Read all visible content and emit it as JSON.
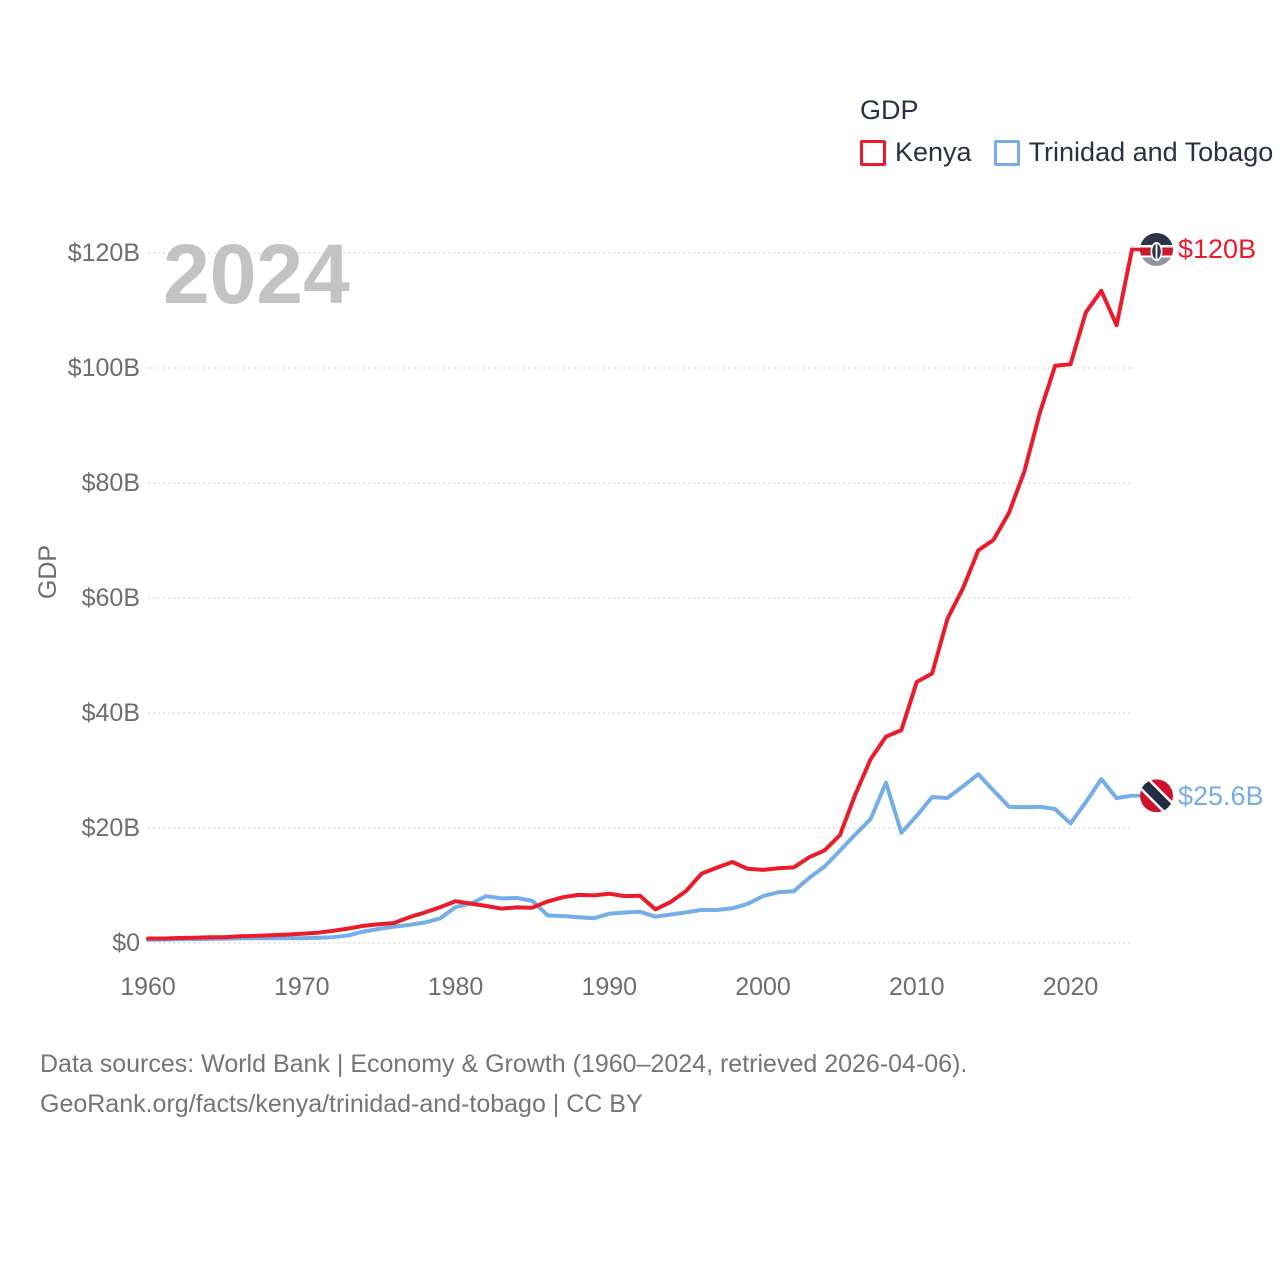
{
  "watermark": "2024",
  "legend": {
    "title": "GDP",
    "items": [
      {
        "label": "Kenya"
      },
      {
        "label": "Trinidad and Tobago"
      }
    ]
  },
  "y_axis": {
    "title": "GDP",
    "ticks": [
      {
        "label": "$120B",
        "value": 120
      },
      {
        "label": "$100B",
        "value": 100
      },
      {
        "label": "$80B",
        "value": 80
      },
      {
        "label": "$60B",
        "value": 60
      },
      {
        "label": "$40B",
        "value": 40
      },
      {
        "label": "$20B",
        "value": 20
      },
      {
        "label": "$0",
        "value": 0
      }
    ]
  },
  "x_axis": {
    "ticks": [
      {
        "label": "1960",
        "year": 1960
      },
      {
        "label": "1970",
        "year": 1970
      },
      {
        "label": "1980",
        "year": 1980
      },
      {
        "label": "1990",
        "year": 1990
      },
      {
        "label": "2000",
        "year": 2000
      },
      {
        "label": "2010",
        "year": 2010
      },
      {
        "label": "2020",
        "year": 2020
      }
    ]
  },
  "end_labels": {
    "kenya": "$120B",
    "trinidad": "$25.6B"
  },
  "footer": {
    "line1": "Data sources: World Bank | Economy & Growth (1960–2024, retrieved 2026-04-06).",
    "line2": "GeoRank.org/facts/kenya/trinidad-and-tobago | CC BY"
  },
  "colors": {
    "kenya": "#ea1c2c",
    "trinidad": "#74ade8",
    "grid": "#e4e4e4",
    "tick_text": "#6e6e6e",
    "dark_text": "#273142",
    "watermark": "#c3c3c3",
    "footer_text": "#757575",
    "kenya_flag_navy": "#2c3547",
    "kenya_flag_red": "#c81a2b",
    "kenya_flag_gray": "#8f95a0",
    "tt_flag_red": "#d0112b",
    "tt_flag_navy": "#232c42"
  },
  "chart_data": {
    "type": "line",
    "title": "GDP",
    "ylabel": "GDP",
    "x_start": 1960,
    "x_end": 2024,
    "x_tick_years": [
      1960,
      1970,
      1980,
      1990,
      2000,
      2010,
      2020
    ],
    "y_ticks_b": [
      0,
      20,
      40,
      60,
      80,
      100,
      120
    ],
    "ylim": [
      0,
      130
    ],
    "grid": true,
    "legend_position": "top-right",
    "units": "billions USD",
    "series": [
      {
        "name": "Trinidad and Tobago",
        "color": "#74ade8",
        "end_label": "$25.6B",
        "values": [
          0.55,
          0.61,
          0.64,
          0.68,
          0.72,
          0.77,
          0.8,
          0.83,
          0.84,
          0.85,
          0.82,
          0.9,
          1.0,
          1.31,
          1.98,
          2.44,
          2.86,
          3.14,
          3.56,
          4.27,
          6.24,
          6.89,
          8.14,
          7.76,
          7.83,
          7.33,
          4.79,
          4.69,
          4.48,
          4.32,
          5.07,
          5.31,
          5.44,
          4.57,
          4.95,
          5.33,
          5.76,
          5.74,
          6.04,
          6.8,
          8.15,
          8.83,
          9.01,
          11.31,
          13.28,
          16.05,
          18.88,
          21.54,
          27.87,
          19.19,
          22.16,
          25.38,
          25.21,
          27.25,
          29.35,
          26.5,
          23.7,
          23.6,
          23.7,
          23.3,
          20.8,
          24.5,
          28.5,
          25.2,
          25.61
        ]
      },
      {
        "name": "Kenya",
        "color": "#ea1c2c",
        "end_label": "$120B",
        "values": [
          0.79,
          0.79,
          0.87,
          0.93,
          1.0,
          1.0,
          1.16,
          1.23,
          1.35,
          1.46,
          1.6,
          1.78,
          2.11,
          2.5,
          2.97,
          3.26,
          3.47,
          4.49,
          5.3,
          6.23,
          7.27,
          6.85,
          6.43,
          5.98,
          6.19,
          6.14,
          7.24,
          7.97,
          8.36,
          8.28,
          8.57,
          8.15,
          8.21,
          5.84,
          7.15,
          9.05,
          12.05,
          13.12,
          14.09,
          12.9,
          12.71,
          12.99,
          13.15,
          14.9,
          16.1,
          18.74,
          25.83,
          31.96,
          35.9,
          37.02,
          45.41,
          46.87,
          56.4,
          61.67,
          68.28,
          70.12,
          74.82,
          82.04,
          92.2,
          100.38,
          100.66,
          109.7,
          113.42,
          107.44,
          120.61
        ]
      }
    ]
  }
}
